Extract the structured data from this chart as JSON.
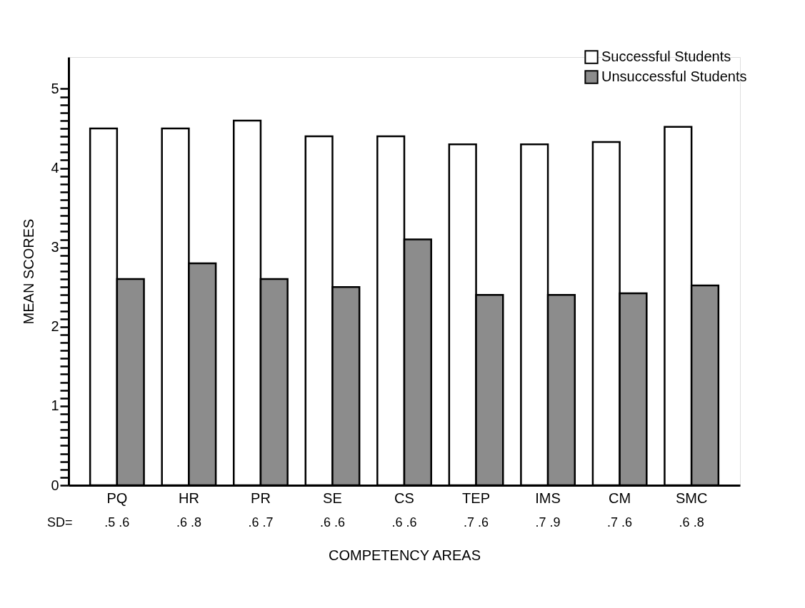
{
  "chart_data": {
    "type": "bar",
    "categories": [
      "PQ",
      "HR",
      "PR",
      "SE",
      "CS",
      "TEP",
      "IMS",
      "CM",
      "SMC"
    ],
    "xlabel": "COMPETENCY AREAS",
    "ylabel": "MEAN SCORES",
    "series": [
      {
        "name": "Successful Students",
        "color": "#ffffff",
        "values": [
          4.5,
          4.5,
          4.6,
          4.4,
          4.4,
          4.3,
          4.3,
          4.33,
          4.52
        ]
      },
      {
        "name": "Unsuccessful Students",
        "color": "#8c8c8c",
        "values": [
          2.6,
          2.8,
          2.6,
          2.5,
          3.1,
          2.4,
          2.4,
          2.42,
          2.52
        ]
      }
    ],
    "ylim": [
      0,
      5.4
    ],
    "yticks": [
      0,
      {
        "value": 0.1,
        "label": null
      },
      {
        "value": 0.2,
        "label": null
      },
      {
        "value": 0.3,
        "label": null
      },
      {
        "value": 0.4,
        "label": null
      },
      {
        "value": 0.5,
        "label": null
      },
      {
        "value": 0.6,
        "label": null
      },
      {
        "value": 0.7,
        "label": null
      },
      {
        "value": 0.8,
        "label": null
      },
      {
        "value": 0.9,
        "label": null
      },
      1,
      {
        "value": 1.1,
        "label": null
      },
      {
        "value": 1.2,
        "label": null
      },
      {
        "value": 1.3,
        "label": null
      },
      {
        "value": 1.4,
        "label": null
      },
      {
        "value": 1.5,
        "label": null
      },
      {
        "value": 1.6,
        "label": null
      },
      {
        "value": 1.7,
        "label": null
      },
      {
        "value": 1.8,
        "label": null
      },
      {
        "value": 1.9,
        "label": null
      },
      2,
      {
        "value": 2.1,
        "label": null
      },
      {
        "value": 2.2,
        "label": null
      },
      {
        "value": 2.3,
        "label": null
      },
      {
        "value": 2.4,
        "label": null
      },
      {
        "value": 2.5,
        "label": null
      },
      {
        "value": 2.6,
        "label": null
      },
      {
        "value": 2.7,
        "label": null
      },
      {
        "value": 2.8,
        "label": null
      },
      {
        "value": 2.9,
        "label": null
      },
      3,
      {
        "value": 3.1,
        "label": null
      },
      {
        "value": 3.2,
        "label": null
      },
      {
        "value": 3.3,
        "label": null
      },
      {
        "value": 3.4,
        "label": null
      },
      {
        "value": 3.5,
        "label": null
      },
      {
        "value": 3.6,
        "label": null
      },
      {
        "value": 3.7,
        "label": null
      },
      {
        "value": 3.8,
        "label": null
      },
      {
        "value": 3.9,
        "label": null
      },
      4,
      {
        "value": 4.1,
        "label": null
      },
      {
        "value": 4.2,
        "label": null
      },
      {
        "value": 4.3,
        "label": null
      },
      {
        "value": 4.4,
        "label": null
      },
      {
        "value": 4.5,
        "label": null
      },
      {
        "value": 4.6,
        "label": null
      },
      {
        "value": 4.7,
        "label": null
      },
      {
        "value": 4.8,
        "label": null
      },
      {
        "value": 4.9,
        "label": null
      },
      5
    ],
    "grid": false,
    "legend": "top right",
    "annotations": [
      "SD=",
      ".5 .6",
      ".6 .8",
      ".6 .7",
      ".6 .6",
      ".6 .6",
      ".7 .6",
      ".7 .9",
      ".7 .6",
      ".6 .8"
    ]
  }
}
